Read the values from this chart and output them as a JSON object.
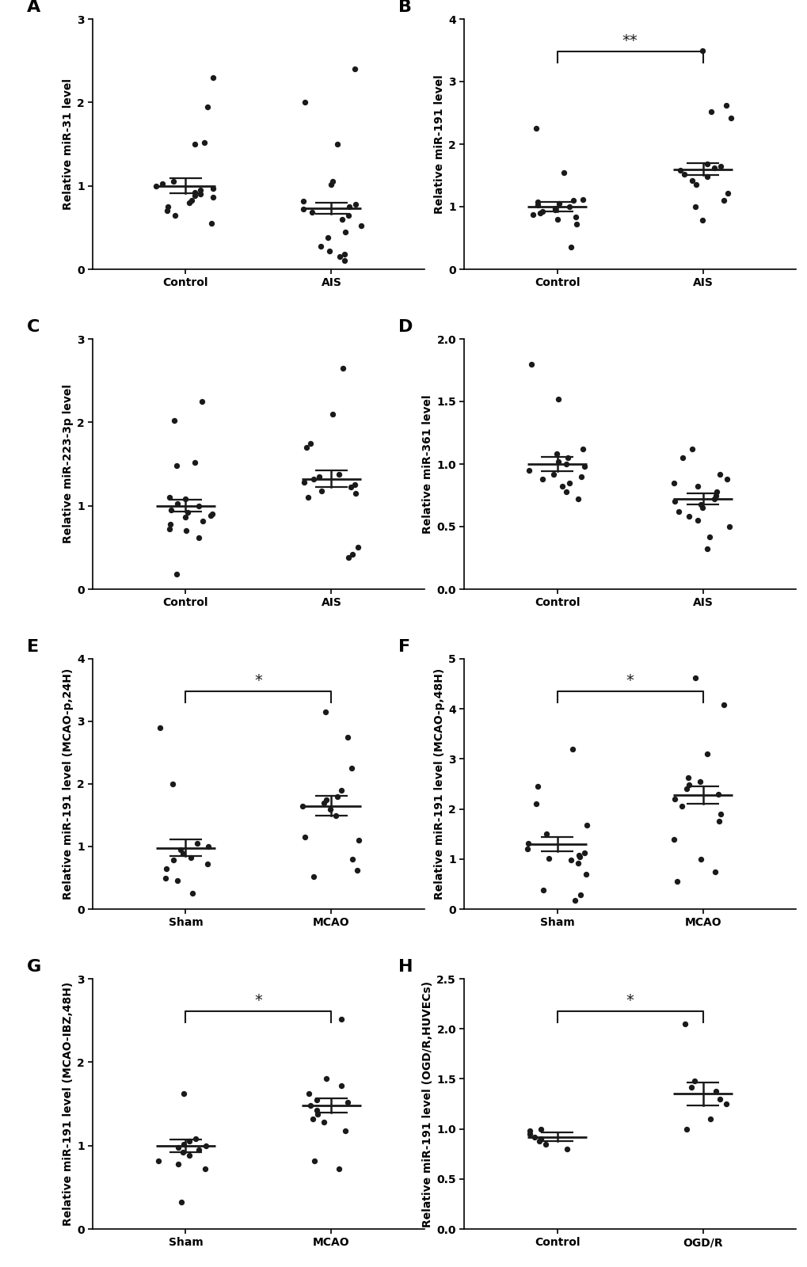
{
  "panels": [
    {
      "label": "A",
      "ylabel": "Relative miR-31 level",
      "groups": [
        "Control",
        "AIS"
      ],
      "ylim": [
        0,
        3
      ],
      "yticks": [
        0,
        1,
        2,
        3
      ],
      "mean": [
        1.0,
        0.73
      ],
      "sem": [
        0.09,
        0.07
      ],
      "sig": null,
      "data": {
        "Control": [
          0.55,
          0.65,
          0.7,
          0.75,
          0.8,
          0.83,
          0.86,
          0.88,
          0.9,
          0.92,
          0.95,
          0.97,
          1.0,
          1.03,
          1.05,
          1.5,
          1.52,
          1.95,
          2.3
        ],
        "AIS": [
          0.1,
          0.15,
          0.18,
          0.22,
          0.28,
          0.38,
          0.45,
          0.52,
          0.6,
          0.65,
          0.68,
          0.72,
          0.75,
          0.78,
          0.82,
          1.02,
          1.05,
          1.5,
          2.0,
          2.4
        ]
      }
    },
    {
      "label": "B",
      "ylabel": "Relative miR-191 level",
      "groups": [
        "Control",
        "AIS"
      ],
      "ylim": [
        0,
        4
      ],
      "yticks": [
        0,
        1,
        2,
        3,
        4
      ],
      "mean": [
        1.0,
        1.6
      ],
      "sem": [
        0.075,
        0.095
      ],
      "sig": "**",
      "data": {
        "Control": [
          0.35,
          0.72,
          0.8,
          0.83,
          0.87,
          0.9,
          0.92,
          0.95,
          0.98,
          1.0,
          1.02,
          1.05,
          1.08,
          1.1,
          1.12,
          1.55,
          2.25
        ],
        "AIS": [
          0.78,
          1.0,
          1.1,
          1.22,
          1.35,
          1.42,
          1.48,
          1.52,
          1.58,
          1.62,
          1.65,
          1.68,
          2.42,
          2.52,
          2.62,
          3.5
        ]
      }
    },
    {
      "label": "C",
      "ylabel": "Relative miR-223-3p level",
      "groups": [
        "Control",
        "AIS"
      ],
      "ylim": [
        0,
        3
      ],
      "yticks": [
        0,
        1,
        2,
        3
      ],
      "mean": [
        1.0,
        1.32
      ],
      "sem": [
        0.07,
        0.1
      ],
      "sig": null,
      "data": {
        "Control": [
          0.18,
          0.62,
          0.7,
          0.72,
          0.78,
          0.82,
          0.86,
          0.88,
          0.9,
          0.92,
          0.95,
          1.0,
          1.03,
          1.08,
          1.1,
          1.48,
          1.52,
          2.02,
          2.25
        ],
        "AIS": [
          0.38,
          0.42,
          0.5,
          1.1,
          1.15,
          1.18,
          1.22,
          1.25,
          1.28,
          1.32,
          1.35,
          1.38,
          1.7,
          1.75,
          2.1,
          2.65
        ]
      }
    },
    {
      "label": "D",
      "ylabel": "Relative miR-361 level",
      "groups": [
        "Control",
        "AIS"
      ],
      "ylim": [
        0.0,
        2.0
      ],
      "yticks": [
        0.0,
        0.5,
        1.0,
        1.5,
        2.0
      ],
      "mean": [
        1.0,
        0.72
      ],
      "sem": [
        0.055,
        0.045
      ],
      "sig": null,
      "data": {
        "Control": [
          0.72,
          0.78,
          0.82,
          0.85,
          0.88,
          0.9,
          0.92,
          0.95,
          0.98,
          1.0,
          1.02,
          1.05,
          1.08,
          1.12,
          1.52,
          1.8
        ],
        "AIS": [
          0.32,
          0.42,
          0.5,
          0.55,
          0.58,
          0.62,
          0.65,
          0.68,
          0.7,
          0.72,
          0.75,
          0.78,
          0.82,
          0.85,
          0.88,
          0.92,
          1.05,
          1.12
        ]
      }
    },
    {
      "label": "E",
      "ylabel": "Relative miR-191 level (MCAO-p,24H)",
      "groups": [
        "Sham",
        "MCAO"
      ],
      "ylim": [
        0,
        4
      ],
      "yticks": [
        0,
        1,
        2,
        3,
        4
      ],
      "mean": [
        0.98,
        1.65
      ],
      "sem": [
        0.13,
        0.16
      ],
      "sig": "*",
      "data": {
        "Sham": [
          0.25,
          0.45,
          0.5,
          0.65,
          0.72,
          0.78,
          0.82,
          0.88,
          0.95,
          1.0,
          1.05,
          2.0,
          2.9
        ],
        "MCAO": [
          0.52,
          0.62,
          0.8,
          1.1,
          1.15,
          1.5,
          1.6,
          1.65,
          1.7,
          1.75,
          1.8,
          1.9,
          2.25,
          2.75,
          3.15
        ]
      }
    },
    {
      "label": "F",
      "ylabel": "Relative miR-191 level (MCAO-p,48H)",
      "groups": [
        "Sham",
        "MCAO"
      ],
      "ylim": [
        0,
        5
      ],
      "yticks": [
        0,
        1,
        2,
        3,
        4,
        5
      ],
      "mean": [
        1.3,
        2.28
      ],
      "sem": [
        0.14,
        0.18
      ],
      "sig": "*",
      "data": {
        "Sham": [
          0.18,
          0.28,
          0.38,
          0.7,
          0.92,
          0.98,
          1.02,
          1.05,
          1.08,
          1.12,
          1.2,
          1.32,
          1.5,
          1.68,
          2.1,
          2.45,
          3.2
        ],
        "MCAO": [
          0.55,
          0.75,
          1.0,
          1.4,
          1.75,
          1.9,
          2.05,
          2.2,
          2.3,
          2.4,
          2.48,
          2.55,
          2.62,
          3.1,
          4.08,
          4.62
        ]
      }
    },
    {
      "label": "G",
      "ylabel": "Relative miR-191 level (MCAO-IBZ,48H)",
      "groups": [
        "Sham",
        "MCAO"
      ],
      "ylim": [
        0,
        3
      ],
      "yticks": [
        0,
        1,
        2,
        3
      ],
      "mean": [
        1.0,
        1.48
      ],
      "sem": [
        0.075,
        0.085
      ],
      "sig": "*",
      "data": {
        "Sham": [
          0.32,
          0.72,
          0.78,
          0.82,
          0.88,
          0.92,
          0.95,
          0.98,
          1.0,
          1.02,
          1.05,
          1.08,
          1.62
        ],
        "MCAO": [
          0.72,
          0.82,
          1.18,
          1.28,
          1.32,
          1.38,
          1.42,
          1.48,
          1.52,
          1.55,
          1.62,
          1.72,
          1.8,
          2.52
        ]
      }
    },
    {
      "label": "H",
      "ylabel": "Relative miR-191 level (OGD/R,HUVECs)",
      "groups": [
        "Control",
        "OGD/R"
      ],
      "ylim": [
        0.0,
        2.5
      ],
      "yticks": [
        0.0,
        0.5,
        1.0,
        1.5,
        2.0,
        2.5
      ],
      "mean": [
        0.92,
        1.35
      ],
      "sem": [
        0.045,
        0.115
      ],
      "sig": "*",
      "data": {
        "Control": [
          0.8,
          0.85,
          0.88,
          0.9,
          0.92,
          0.95,
          0.98,
          1.0
        ],
        "OGD/R": [
          1.0,
          1.1,
          1.25,
          1.3,
          1.38,
          1.42,
          1.48,
          2.05
        ]
      }
    }
  ],
  "dot_color": "#1a1a1a",
  "dot_size": 28,
  "line_color": "#1a1a1a",
  "font_size_label": 10,
  "font_size_tick": 10,
  "font_size_panel": 16,
  "font_size_sig": 14
}
